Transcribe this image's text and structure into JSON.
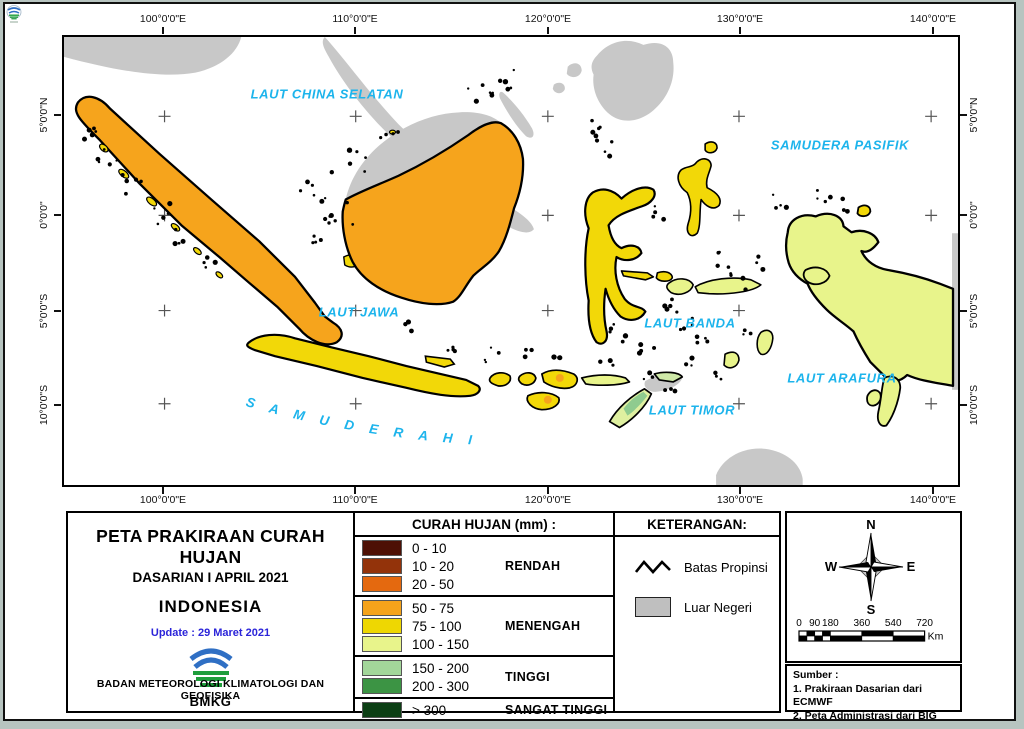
{
  "map": {
    "label_color": "#1db4ec",
    "foreign_color": "#c8c8c8",
    "sea_labels": {
      "laut_china_selatan": "LAUT CHINA SELATAN",
      "samudera_pasifik": "SAMUDERA PASIFIK",
      "laut_jawa": "LAUT JAWA",
      "laut_banda": "LAUT BANDA",
      "laut_arafura": "LAUT ARAFURA",
      "laut_timor": "LAUT TIMOR",
      "samudera_hindia": "S A M U D E R A   H I N D I A"
    },
    "graticule": {
      "lon_labels": [
        "100°0'0\"E",
        "110°0'0\"E",
        "120°0'0\"E",
        "130°0'0\"E",
        "140°0'0\"E"
      ],
      "lat_labels": [
        "5°0'0\"N",
        "0°0'0\"",
        "5°0'0\"S",
        "10°0'0\"S"
      ]
    }
  },
  "title_block": {
    "title": "PETA PRAKIRAAN CURAH HUJAN",
    "subtitle": "DASARIAN I APRIL 2021",
    "region": "INDONESIA",
    "update": "Update : 29 Maret  2021",
    "update_color": "#2b24d9",
    "logo_text": "BMKG",
    "agency": "BADAN METEOROLOGI KLIMATOLOGI DAN GEOFISIKA"
  },
  "legend": {
    "header": "CURAH HUJAN (mm) :",
    "groups": [
      {
        "label": "RENDAH",
        "rows": [
          {
            "range": "0 - 10",
            "color": "#4d1005"
          },
          {
            "range": "10 - 20",
            "color": "#93330a"
          },
          {
            "range": "20 - 50",
            "color": "#e4690f"
          }
        ]
      },
      {
        "label": "MENENGAH",
        "rows": [
          {
            "range": "50 - 75",
            "color": "#f5a31b"
          },
          {
            "range": "75 - 100",
            "color": "#eed702"
          },
          {
            "range": "100 - 150",
            "color": "#e8f48b"
          }
        ]
      },
      {
        "label": "TINGGI",
        "rows": [
          {
            "range": "150 - 200",
            "color": "#a3d69a"
          },
          {
            "range": "200 - 300",
            "color": "#3c9444"
          }
        ]
      },
      {
        "label": "SANGAT TINGGI",
        "rows": [
          {
            "range": "> 300",
            "color": "#0c3f14"
          }
        ]
      }
    ]
  },
  "keterangan": {
    "header": "KETERANGAN:",
    "batas_propinsi": "Batas Propinsi",
    "luar_negeri": "Luar Negeri",
    "luar_negeri_color": "#bfbfbf"
  },
  "compass": {
    "n": "N",
    "e": "E",
    "s": "S",
    "w": "W"
  },
  "scalebar": {
    "ticks": [
      "0",
      "90",
      "180",
      "360",
      "540",
      "720"
    ],
    "unit": "Km"
  },
  "sumber": {
    "header": "Sumber :",
    "lines": [
      "1. Prakiraan Dasarian dari ECMWF",
      "2. Peta Administrasi dari BIG"
    ]
  }
}
